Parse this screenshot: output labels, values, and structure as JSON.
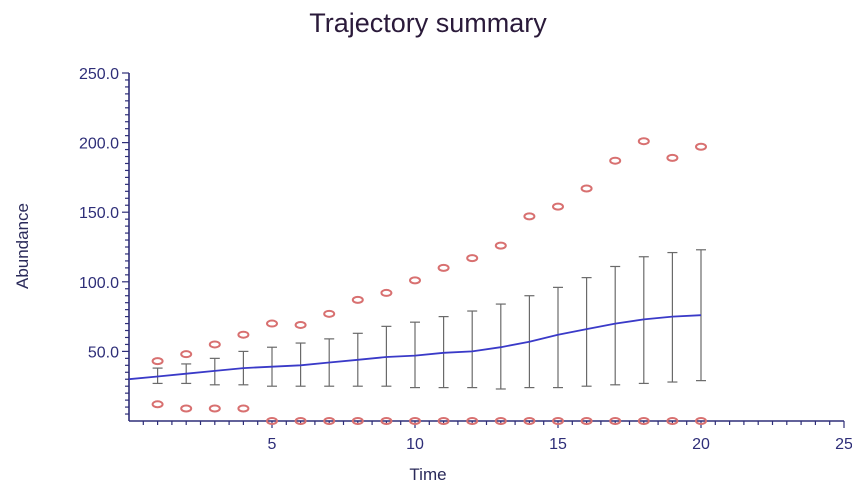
{
  "chart_data": {
    "type": "line",
    "title": "Trajectory summary",
    "xlabel": "Time",
    "ylabel": "Abundance",
    "xlim": [
      0,
      25
    ],
    "ylim": [
      0,
      250
    ],
    "x_ticks": [
      5,
      10,
      15,
      20,
      25
    ],
    "y_ticks": [
      50,
      100,
      150,
      200,
      250
    ],
    "x_tick_labels": [
      "5",
      "10",
      "15",
      "20",
      "25"
    ],
    "y_tick_labels": [
      "50.0",
      "100.0",
      "150.0",
      "200.0",
      "250.0"
    ],
    "grid": false,
    "legend": "none",
    "colors": {
      "mean": "#3a3ac8",
      "error": "#6a6a6a",
      "extremes": "#d87070",
      "axis": "#2e2e78"
    },
    "mean_line": {
      "x": [
        0,
        1,
        2,
        3,
        4,
        5,
        6,
        7,
        8,
        9,
        10,
        11,
        12,
        13,
        14,
        15,
        16,
        17,
        18,
        19,
        20
      ],
      "y": [
        30,
        32,
        34,
        36,
        38,
        39,
        40,
        42,
        44,
        46,
        47,
        49,
        50,
        53,
        57,
        62,
        66,
        70,
        73,
        75,
        76
      ]
    },
    "error_bars": {
      "x": [
        1,
        2,
        3,
        4,
        5,
        6,
        7,
        8,
        9,
        10,
        11,
        12,
        13,
        14,
        15,
        16,
        17,
        18,
        19,
        20
      ],
      "lower": [
        27,
        27,
        26,
        26,
        25,
        25,
        25,
        25,
        25,
        24,
        24,
        24,
        23,
        24,
        24,
        25,
        26,
        27,
        28,
        29
      ],
      "upper": [
        38,
        41,
        45,
        50,
        53,
        56,
        59,
        63,
        68,
        71,
        75,
        79,
        84,
        90,
        96,
        103,
        111,
        118,
        121,
        123
      ]
    },
    "max_points": {
      "x": [
        1,
        2,
        3,
        4,
        5,
        6,
        7,
        8,
        9,
        10,
        11,
        12,
        13,
        14,
        15,
        16,
        17,
        18,
        19,
        20
      ],
      "y": [
        43,
        48,
        55,
        62,
        70,
        69,
        77,
        87,
        92,
        101,
        110,
        117,
        126,
        147,
        154,
        167,
        187,
        201,
        189,
        197
      ]
    },
    "min_points": {
      "x": [
        1,
        2,
        3,
        4,
        5,
        6,
        7,
        8,
        9,
        10,
        11,
        12,
        13,
        14,
        15,
        16,
        17,
        18,
        19,
        20
      ],
      "y": [
        12,
        9,
        9,
        9,
        0,
        0,
        0,
        0,
        0,
        0,
        0,
        0,
        0,
        0,
        0,
        0,
        0,
        0,
        0,
        0
      ]
    }
  }
}
